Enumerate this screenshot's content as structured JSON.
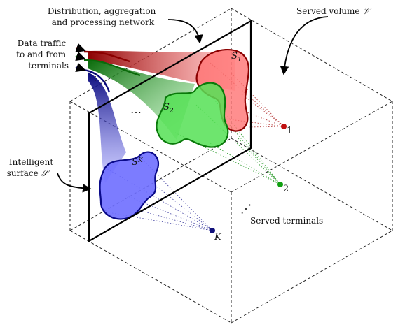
{
  "labels": {
    "network_line1": "Distribution, aggregation",
    "network_line2": "and processing network",
    "volume": "Served volume",
    "volume_symbol": "𝒱",
    "traffic_line1": "Data traffic",
    "traffic_line2": "to and from",
    "traffic_line3": "terminals",
    "surface_line1": "Intelligent",
    "surface_line2": "surface",
    "surface_symbol": "𝒮",
    "served_terminals": "Served terminals"
  },
  "regions": [
    {
      "label": "S",
      "sub": "1",
      "color": "#d31f1f"
    },
    {
      "label": "S",
      "sub": "2",
      "color": "#1f9a1f"
    },
    {
      "label": "S",
      "sub": "K",
      "color": "#1a1aa8"
    }
  ],
  "terminals": [
    {
      "label": "1",
      "color": "#c01010"
    },
    {
      "label": "2",
      "color": "#10a010"
    },
    {
      "label": "K",
      "color": "#10107a"
    }
  ],
  "ellipses": {
    "regions": "⋯",
    "terminals": "⋰",
    "traffic": "⋮"
  }
}
